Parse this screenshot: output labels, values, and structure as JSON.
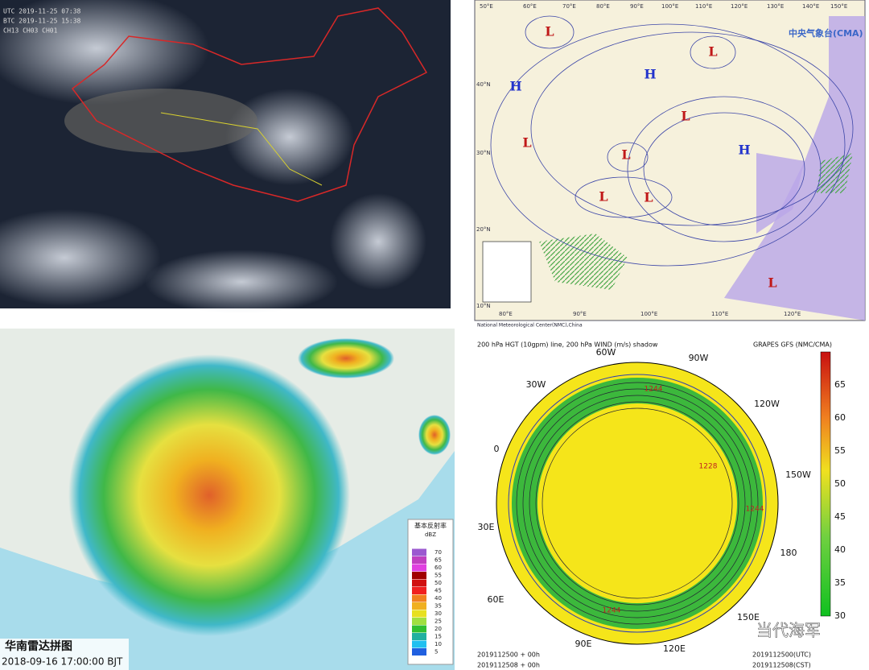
{
  "satellite": {
    "lines": [
      "UTC 2019-11-25 07:38",
      "BTC 2019-11-25 15:38",
      "CH13 CH03 CH01"
    ]
  },
  "surface_map": {
    "logo": "中央气象台(CMA)",
    "top_lon": [
      "50°E",
      "60°E",
      "70°E",
      "80°E",
      "90°E",
      "100°E",
      "110°E",
      "120°E",
      "130°E",
      "140°E",
      "150°E"
    ],
    "bottom_lon": [
      "80°E",
      "90°E",
      "100°E",
      "110°E",
      "120°E"
    ],
    "lat": [
      "40°N",
      "30°N",
      "20°N",
      "10°N"
    ],
    "centers": [
      "L",
      "L",
      "H",
      "H",
      "L",
      "L",
      "L",
      "L",
      "L",
      "H",
      "L"
    ],
    "footer": "National Meteorological Center(NMC),China"
  },
  "radar": {
    "title": "华南雷达拼图",
    "time": "2018-09-16 17:00:00 BJT",
    "legend_title": "基本反射率",
    "legend_unit": "dBZ",
    "legend_values": [
      70,
      65,
      60,
      55,
      50,
      45,
      40,
      35,
      30,
      25,
      20,
      15,
      10,
      5
    ]
  },
  "upper_air": {
    "title_left": "200 hPa HGT (10gpm) line, 200 hPa WIND (m/s) shadow",
    "title_right": "GRAPES GFS (NMC/CMA)",
    "lon_labels": [
      "60W",
      "90W",
      "30W",
      "120W",
      "0",
      "150W",
      "30E",
      "180",
      "60E",
      "150E",
      "90E",
      "120E"
    ],
    "contour_labels": [
      "1244",
      "1228",
      "1244",
      "1244"
    ],
    "colorbar": [
      65,
      60,
      55,
      50,
      45,
      40,
      35,
      30
    ],
    "run_utc": "2019112500 + 00h",
    "run_cst": "2019112508 + 00h",
    "stamp_utc": "2019112500(UTC)",
    "stamp_cst": "2019112508(CST)"
  },
  "watermark": "当代海军"
}
